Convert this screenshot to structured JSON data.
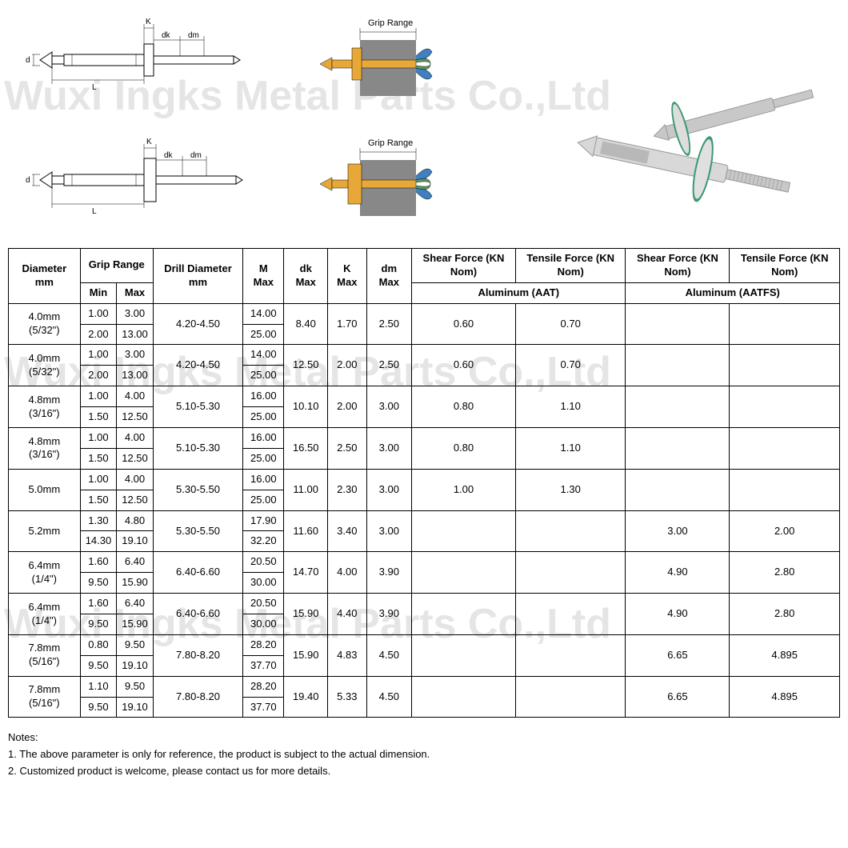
{
  "watermark_text": "Wuxi Ingks Metal Parts Co.,Ltd",
  "diagram_labels": {
    "K": "K",
    "dk": "dk",
    "dm": "dm",
    "d": "d",
    "L": "L",
    "grip_range": "Grip Range"
  },
  "table": {
    "headers": {
      "diameter": "Diameter mm",
      "grip_range": "Grip Range",
      "min": "Min",
      "max": "Max",
      "drill_diameter": "Drill Diameter mm",
      "m_max": "M Max",
      "dk_max": "dk Max",
      "k_max": "K Max",
      "dm_max": "dm Max",
      "shear_force": "Shear Force (KN Nom)",
      "tensile_force": "Tensile Force (KN Nom)",
      "aluminum_aat": "Aluminum (AAT)",
      "aluminum_aatfs": "Aluminum (AATFS)"
    },
    "rows": [
      {
        "dia": "4.0mm (5/32\")",
        "min1": "1.00",
        "max1": "3.00",
        "min2": "2.00",
        "max2": "13.00",
        "drill": "4.20-4.50",
        "m1": "14.00",
        "m2": "25.00",
        "dk": "8.40",
        "k": "1.70",
        "dm": "2.50",
        "sf_aat": "0.60",
        "tf_aat": "0.70",
        "sf_aatfs": "",
        "tf_aatfs": ""
      },
      {
        "dia": "4.0mm (5/32\")",
        "min1": "1.00",
        "max1": "3.00",
        "min2": "2.00",
        "max2": "13.00",
        "drill": "4.20-4.50",
        "m1": "14.00",
        "m2": "25.00",
        "dk": "12.50",
        "k": "2.00",
        "dm": "2.50",
        "sf_aat": "0.60",
        "tf_aat": "0.70",
        "sf_aatfs": "",
        "tf_aatfs": ""
      },
      {
        "dia": "4.8mm (3/16\")",
        "min1": "1.00",
        "max1": "4.00",
        "min2": "1.50",
        "max2": "12.50",
        "drill": "5.10-5.30",
        "m1": "16.00",
        "m2": "25.00",
        "dk": "10.10",
        "k": "2.00",
        "dm": "3.00",
        "sf_aat": "0.80",
        "tf_aat": "1.10",
        "sf_aatfs": "",
        "tf_aatfs": ""
      },
      {
        "dia": "4.8mm (3/16\")",
        "min1": "1.00",
        "max1": "4.00",
        "min2": "1.50",
        "max2": "12.50",
        "drill": "5.10-5.30",
        "m1": "16.00",
        "m2": "25.00",
        "dk": "16.50",
        "k": "2.50",
        "dm": "3.00",
        "sf_aat": "0.80",
        "tf_aat": "1.10",
        "sf_aatfs": "",
        "tf_aatfs": ""
      },
      {
        "dia": "5.0mm",
        "min1": "1.00",
        "max1": "4.00",
        "min2": "1.50",
        "max2": "12.50",
        "drill": "5.30-5.50",
        "m1": "16.00",
        "m2": "25.00",
        "dk": "11.00",
        "k": "2.30",
        "dm": "3.00",
        "sf_aat": "1.00",
        "tf_aat": "1.30",
        "sf_aatfs": "",
        "tf_aatfs": ""
      },
      {
        "dia": "5.2mm",
        "min1": "1.30",
        "max1": "4.80",
        "min2": "14.30",
        "max2": "19.10",
        "drill": "5.30-5.50",
        "m1": "17.90",
        "m2": "32.20",
        "dk": "11.60",
        "k": "3.40",
        "dm": "3.00",
        "sf_aat": "",
        "tf_aat": "",
        "sf_aatfs": "3.00",
        "tf_aatfs": "2.00"
      },
      {
        "dia": "6.4mm (1/4\")",
        "min1": "1.60",
        "max1": "6.40",
        "min2": "9.50",
        "max2": "15.90",
        "drill": "6.40-6.60",
        "m1": "20.50",
        "m2": "30.00",
        "dk": "14.70",
        "k": "4.00",
        "dm": "3.90",
        "sf_aat": "",
        "tf_aat": "",
        "sf_aatfs": "4.90",
        "tf_aatfs": "2.80"
      },
      {
        "dia": "6.4mm (1/4\")",
        "min1": "1.60",
        "max1": "6.40",
        "min2": "9.50",
        "max2": "15.90",
        "drill": "6.40-6.60",
        "m1": "20.50",
        "m2": "30.00",
        "dk": "15.90",
        "k": "4.40",
        "dm": "3.90",
        "sf_aat": "",
        "tf_aat": "",
        "sf_aatfs": "4.90",
        "tf_aatfs": "2.80"
      },
      {
        "dia": "7.8mm (5/16\")",
        "min1": "0.80",
        "max1": "9.50",
        "min2": "9.50",
        "max2": "19.10",
        "drill": "7.80-8.20",
        "m1": "28.20",
        "m2": "37.70",
        "dk": "15.90",
        "k": "4.83",
        "dm": "4.50",
        "sf_aat": "",
        "tf_aat": "",
        "sf_aatfs": "6.65",
        "tf_aatfs": "4.895"
      },
      {
        "dia": "7.8mm (5/16\")",
        "min1": "1.10",
        "max1": "9.50",
        "min2": "9.50",
        "max2": "19.10",
        "drill": "7.80-8.20",
        "m1": "28.20",
        "m2": "37.70",
        "dk": "19.40",
        "k": "5.33",
        "dm": "4.50",
        "sf_aat": "",
        "tf_aat": "",
        "sf_aatfs": "6.65",
        "tf_aatfs": "4.895"
      }
    ]
  },
  "notes": {
    "title": "Notes:",
    "note1": "1. The above parameter is only for reference, the product is subject to the actual dimension.",
    "note2": "2. Customized product is welcome, please contact us for more details."
  },
  "colors": {
    "watermark": "#cccccc",
    "border": "#000000",
    "rivet_body": "#e8a838",
    "rivet_gray": "#888888",
    "rivet_blue": "#4080c0",
    "rivet_green": "#5a9a5a",
    "photo_green": "#3a9970",
    "photo_silver": "#c8c8c8"
  }
}
